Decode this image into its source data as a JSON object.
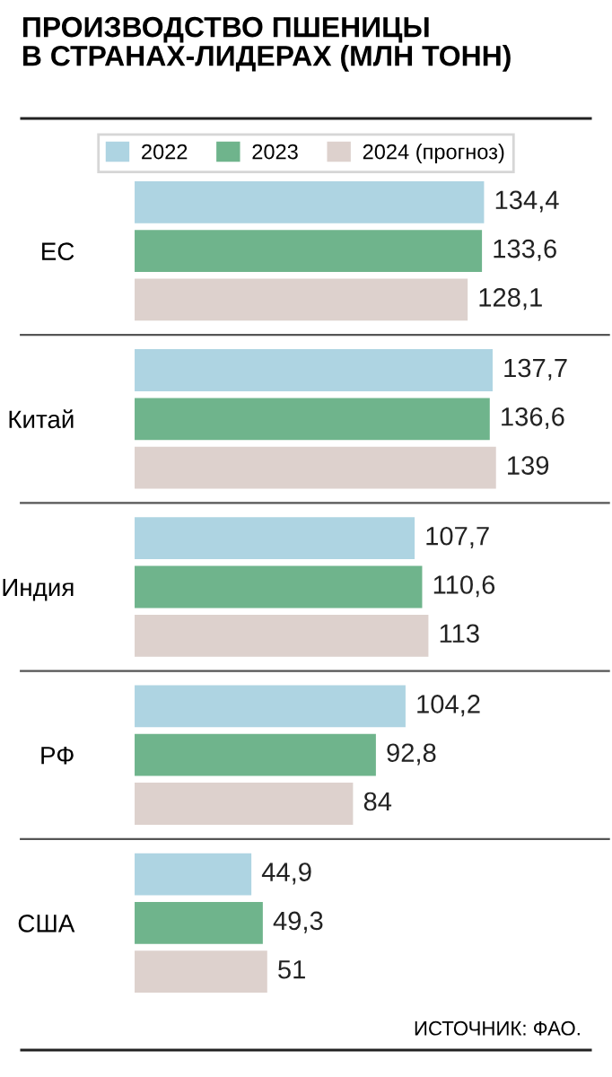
{
  "chart_data": {
    "type": "bar",
    "orientation": "horizontal",
    "title": "ПРОИЗВОДСТВО ПШЕНИЦЫ\nВ СТРАНАХ-ЛИДЕРАХ (МЛН ТОНН)",
    "categories": [
      "ЕС",
      "Китай",
      "Индия",
      "РФ",
      "США"
    ],
    "series": [
      {
        "name": "2022",
        "color": "#aed4e2",
        "values": [
          134.4,
          137.7,
          107.7,
          104.2,
          44.9
        ],
        "value_labels": [
          "134,4",
          "137,7",
          "107,7",
          "104,2",
          "44,9"
        ]
      },
      {
        "name": "2023",
        "color": "#6fb48c",
        "values": [
          133.6,
          136.6,
          110.6,
          92.8,
          49.3
        ],
        "value_labels": [
          "133,6",
          "136,6",
          "110,6",
          "92,8",
          "49,3"
        ]
      },
      {
        "name": "2024 (прогноз)",
        "color": "#ddd1cd",
        "values": [
          128.1,
          139,
          113,
          84,
          51
        ],
        "value_labels": [
          "128,1",
          "139",
          "113",
          "84",
          "51"
        ]
      }
    ],
    "legend": "top",
    "grid": false,
    "annotations": [
      "ИСТОЧНИК: ФАО."
    ]
  }
}
